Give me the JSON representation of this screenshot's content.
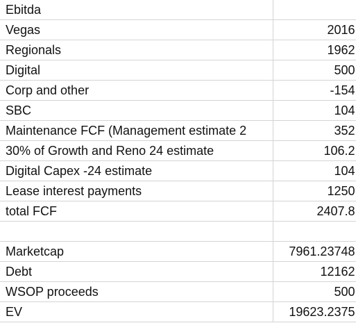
{
  "sheet": {
    "rows": [
      {
        "label": "Ebitda",
        "value": ""
      },
      {
        "label": "Vegas",
        "value": "2016"
      },
      {
        "label": "Regionals",
        "value": "1962"
      },
      {
        "label": "Digital",
        "value": "500"
      },
      {
        "label": "Corp and other",
        "value": "-154"
      },
      {
        "label": "SBC",
        "value": "104"
      },
      {
        "label": "Maintenance FCF (Management estimate 2",
        "value": "352"
      },
      {
        "label": "30% of Growth and Reno 24 estimate",
        "value": "106.2"
      },
      {
        "label": "Digital Capex -24 estimate",
        "value": "104"
      },
      {
        "label": "Lease interest payments",
        "value": "1250"
      },
      {
        "label": "total FCF",
        "value": "2407.8"
      },
      {
        "label": "",
        "value": ""
      },
      {
        "label": "Marketcap",
        "value": "7961.23748"
      },
      {
        "label": "Debt",
        "value": "12162"
      },
      {
        "label": "WSOP proceeds",
        "value": "500"
      },
      {
        "label": "EV",
        "value": "19623.2375"
      }
    ]
  }
}
